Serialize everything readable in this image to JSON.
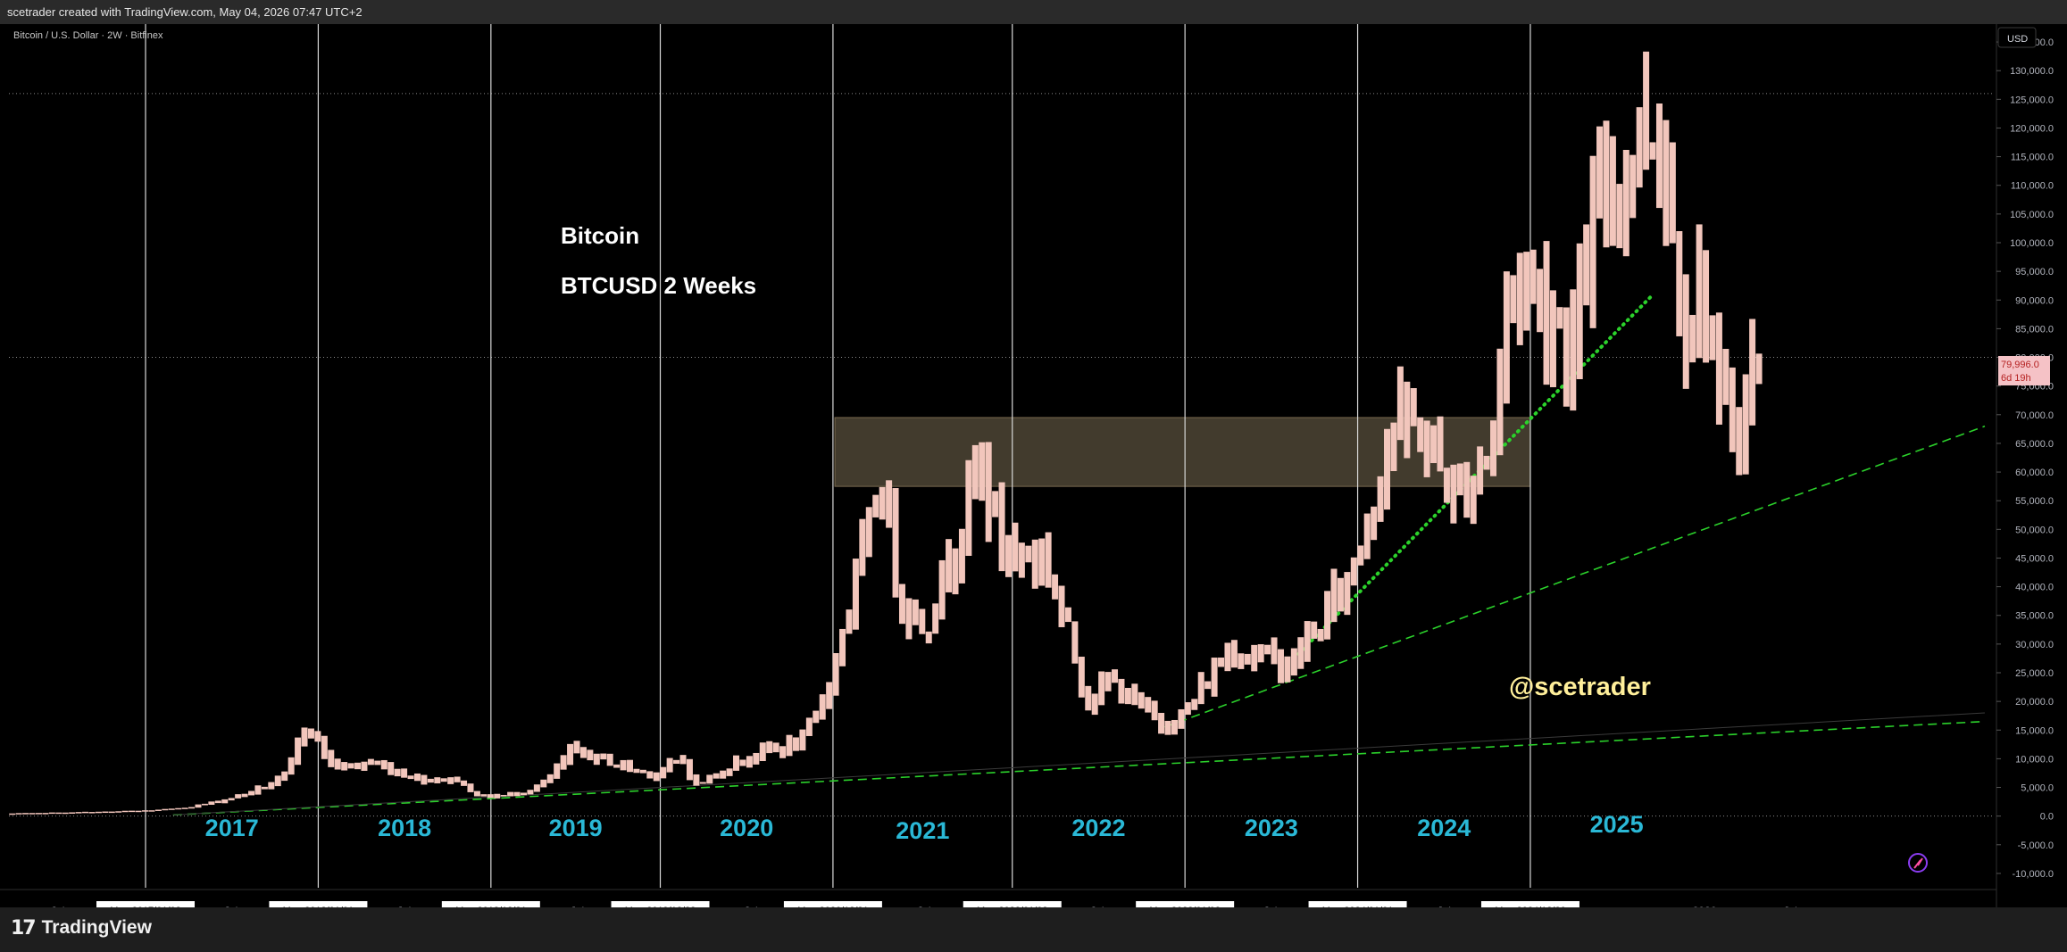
{
  "header": {
    "attribution": "scetrader created with TradingView.com, May 04, 2026 07:47 UTC+2"
  },
  "symbol_info": "Bitcoin / U.S. Dollar · 2W · Bitfinex",
  "currency_label": "USD",
  "annotations": {
    "title": "Bitcoin",
    "subtitle": "BTCUSD 2 Weeks",
    "watermark": "@scetrader"
  },
  "price_tag": {
    "value": "79,996.0",
    "countdown": "6d 19h",
    "price": 79996
  },
  "footer": {
    "brand": "TradingView",
    "logo_mark": "17"
  },
  "colors": {
    "bar": "#f2c6bc",
    "year_label": "#2ab8d6",
    "watermark": "#ffef9a",
    "trend": "#2bd12b",
    "zone": "#4e4535",
    "price_tag_bg": "#f5c2c6",
    "price_tag_text": "#b52222"
  },
  "chart_data": {
    "type": "ohlc",
    "ylim": [
      -12500,
      137500
    ],
    "y_ticks": [
      135000,
      130000,
      125000,
      120000,
      115000,
      110000,
      105000,
      100000,
      95000,
      90000,
      85000,
      80000,
      75000,
      70000,
      65000,
      60000,
      55000,
      50000,
      45000,
      40000,
      35000,
      30000,
      25000,
      20000,
      15000,
      10000,
      5000,
      0,
      -5000,
      -10000
    ],
    "y_tick_labels": [
      "135,000.0",
      "130,000.0",
      "125,000.0",
      "120,000.0",
      "115,000.0",
      "110,000.0",
      "105,000.0",
      "100,000.0",
      "95,000.0",
      "90,000.0",
      "85,000.0",
      "80,000.0",
      "75,000.0",
      "70,000.0",
      "65,000.0",
      "60,000.0",
      "55,000.0",
      "50,000.0",
      "45,000.0",
      "40,000.0",
      "35,000.0",
      "30,000.0",
      "25,000.0",
      "20,000.0",
      "15,000.0",
      "10,000.0",
      "5,000.0",
      "0.0",
      "-5,000.0",
      "-10,000.0"
    ],
    "x_range": [
      "2016-03-20",
      "2027-09-01"
    ],
    "x_ticks": [
      {
        "date": "2016-07-01",
        "label": "Jul"
      },
      {
        "date": "2017-07-01",
        "label": "Jul"
      },
      {
        "date": "2018-07-01",
        "label": "Jul"
      },
      {
        "date": "2019-07-01",
        "label": "Jul"
      },
      {
        "date": "2020-07-01",
        "label": "Jul"
      },
      {
        "date": "2021-07-01",
        "label": "Jul"
      },
      {
        "date": "2022-07-01",
        "label": "Jul"
      },
      {
        "date": "2023-07-01",
        "label": "Jul"
      },
      {
        "date": "2024-07-01",
        "label": "Jul"
      },
      {
        "date": "2026-01-01",
        "label": "2026"
      },
      {
        "date": "2026-07-01",
        "label": "Jul"
      }
    ],
    "cycle_markers": [
      {
        "date": "2017-01-02",
        "label": "Mon 2017/01/02",
        "year": "2017"
      },
      {
        "date": "2018-01-01",
        "label": "Mon 2018/01/01",
        "year": "2018"
      },
      {
        "date": "2018-12-31",
        "label": "Mon 2018/12/31",
        "year": "2019"
      },
      {
        "date": "2019-12-23",
        "label": "Mon 2019/12/23",
        "year": "2020"
      },
      {
        "date": "2020-12-21",
        "label": "Mon 2020/12/21",
        "year": "2021"
      },
      {
        "date": "2022-01-03",
        "label": "Mon 2022/01/03",
        "year": "2022"
      },
      {
        "date": "2023-01-02",
        "label": "Mon 2023/01/02",
        "year": "2023"
      },
      {
        "date": "2024-01-01",
        "label": "Mon 2024/01/01",
        "year": "2024"
      },
      {
        "date": "2024-12-30",
        "label": "Mon 2024/12/30",
        "year": "2025"
      }
    ],
    "horizontal_refs": [
      126000,
      79996,
      0
    ],
    "resistance_zone": {
      "from": "2020-12-25",
      "to": "2024-12-30",
      "low": 57500,
      "high": 69500
    },
    "trendlines": [
      {
        "style": "dotted",
        "from": [
          "2023-08-20",
          27500
        ],
        "to": [
          "2025-09-15",
          91000
        ]
      },
      {
        "style": "dashed",
        "from": [
          "2022-11-20",
          15500
        ],
        "to": [
          "2027-08-15",
          68000
        ]
      },
      {
        "style": "dashed",
        "from": [
          "2017-03-01",
          200
        ],
        "to": [
          "2027-08-15",
          16500
        ]
      },
      {
        "style": "solid",
        "from": [
          "2017-03-01",
          200
        ],
        "to": [
          "2027-08-15",
          18000
        ]
      }
    ],
    "keyframes": [
      [
        "2016-03-20",
        420
      ],
      [
        "2016-12-20",
        880
      ],
      [
        "2017-03-01",
        1150
      ],
      [
        "2017-06-10",
        2600
      ],
      [
        "2017-08-20",
        4300
      ],
      [
        "2017-10-25",
        6500
      ],
      [
        "2017-12-15",
        17500
      ],
      [
        "2018-02-10",
        8500
      ],
      [
        "2018-05-05",
        9200
      ],
      [
        "2018-08-10",
        6500
      ],
      [
        "2018-11-01",
        6300
      ],
      [
        "2018-12-15",
        3400
      ],
      [
        "2019-02-10",
        3600
      ],
      [
        "2019-04-20",
        5200
      ],
      [
        "2019-06-25",
        11500
      ],
      [
        "2019-09-01",
        9800
      ],
      [
        "2019-12-15",
        7200
      ],
      [
        "2020-02-15",
        10000
      ],
      [
        "2020-03-15",
        5500
      ],
      [
        "2020-06-10",
        9500
      ],
      [
        "2020-08-10",
        11500
      ],
      [
        "2020-10-20",
        12500
      ],
      [
        "2020-12-20",
        23500
      ],
      [
        "2021-01-20",
        34000
      ],
      [
        "2021-04-10",
        59500
      ],
      [
        "2021-05-20",
        38000
      ],
      [
        "2021-07-10",
        33000
      ],
      [
        "2021-09-05",
        47000
      ],
      [
        "2021-11-05",
        62000
      ],
      [
        "2021-12-20",
        47000
      ],
      [
        "2022-03-25",
        44500
      ],
      [
        "2022-05-15",
        30000
      ],
      [
        "2022-06-20",
        20500
      ],
      [
        "2022-08-10",
        23500
      ],
      [
        "2022-11-15",
        16500
      ],
      [
        "2022-12-25",
        16600
      ],
      [
        "2023-03-01",
        24000
      ],
      [
        "2023-04-15",
        29500
      ],
      [
        "2023-06-15",
        28000
      ],
      [
        "2023-08-20",
        26500
      ],
      [
        "2023-10-25",
        34000
      ],
      [
        "2023-12-25",
        43000
      ],
      [
        "2024-03-15",
        68000
      ],
      [
        "2024-05-20",
        67500
      ],
      [
        "2024-08-05",
        55000
      ],
      [
        "2024-10-15",
        65000
      ],
      [
        "2024-11-20",
        92000
      ],
      [
        "2024-12-25",
        95000
      ],
      [
        "2025-04-05",
        82000
      ],
      [
        "2025-05-25",
        105000
      ],
      [
        "2025-08-15",
        118000
      ],
      [
        "2025-10-05",
        121000
      ],
      [
        "2025-11-25",
        88000
      ],
      [
        "2026-01-15",
        92000
      ],
      [
        "2026-02-05",
        70000
      ],
      [
        "2026-03-10",
        68000
      ],
      [
        "2026-04-05",
        72000
      ],
      [
        "2026-04-25",
        79996
      ]
    ]
  }
}
